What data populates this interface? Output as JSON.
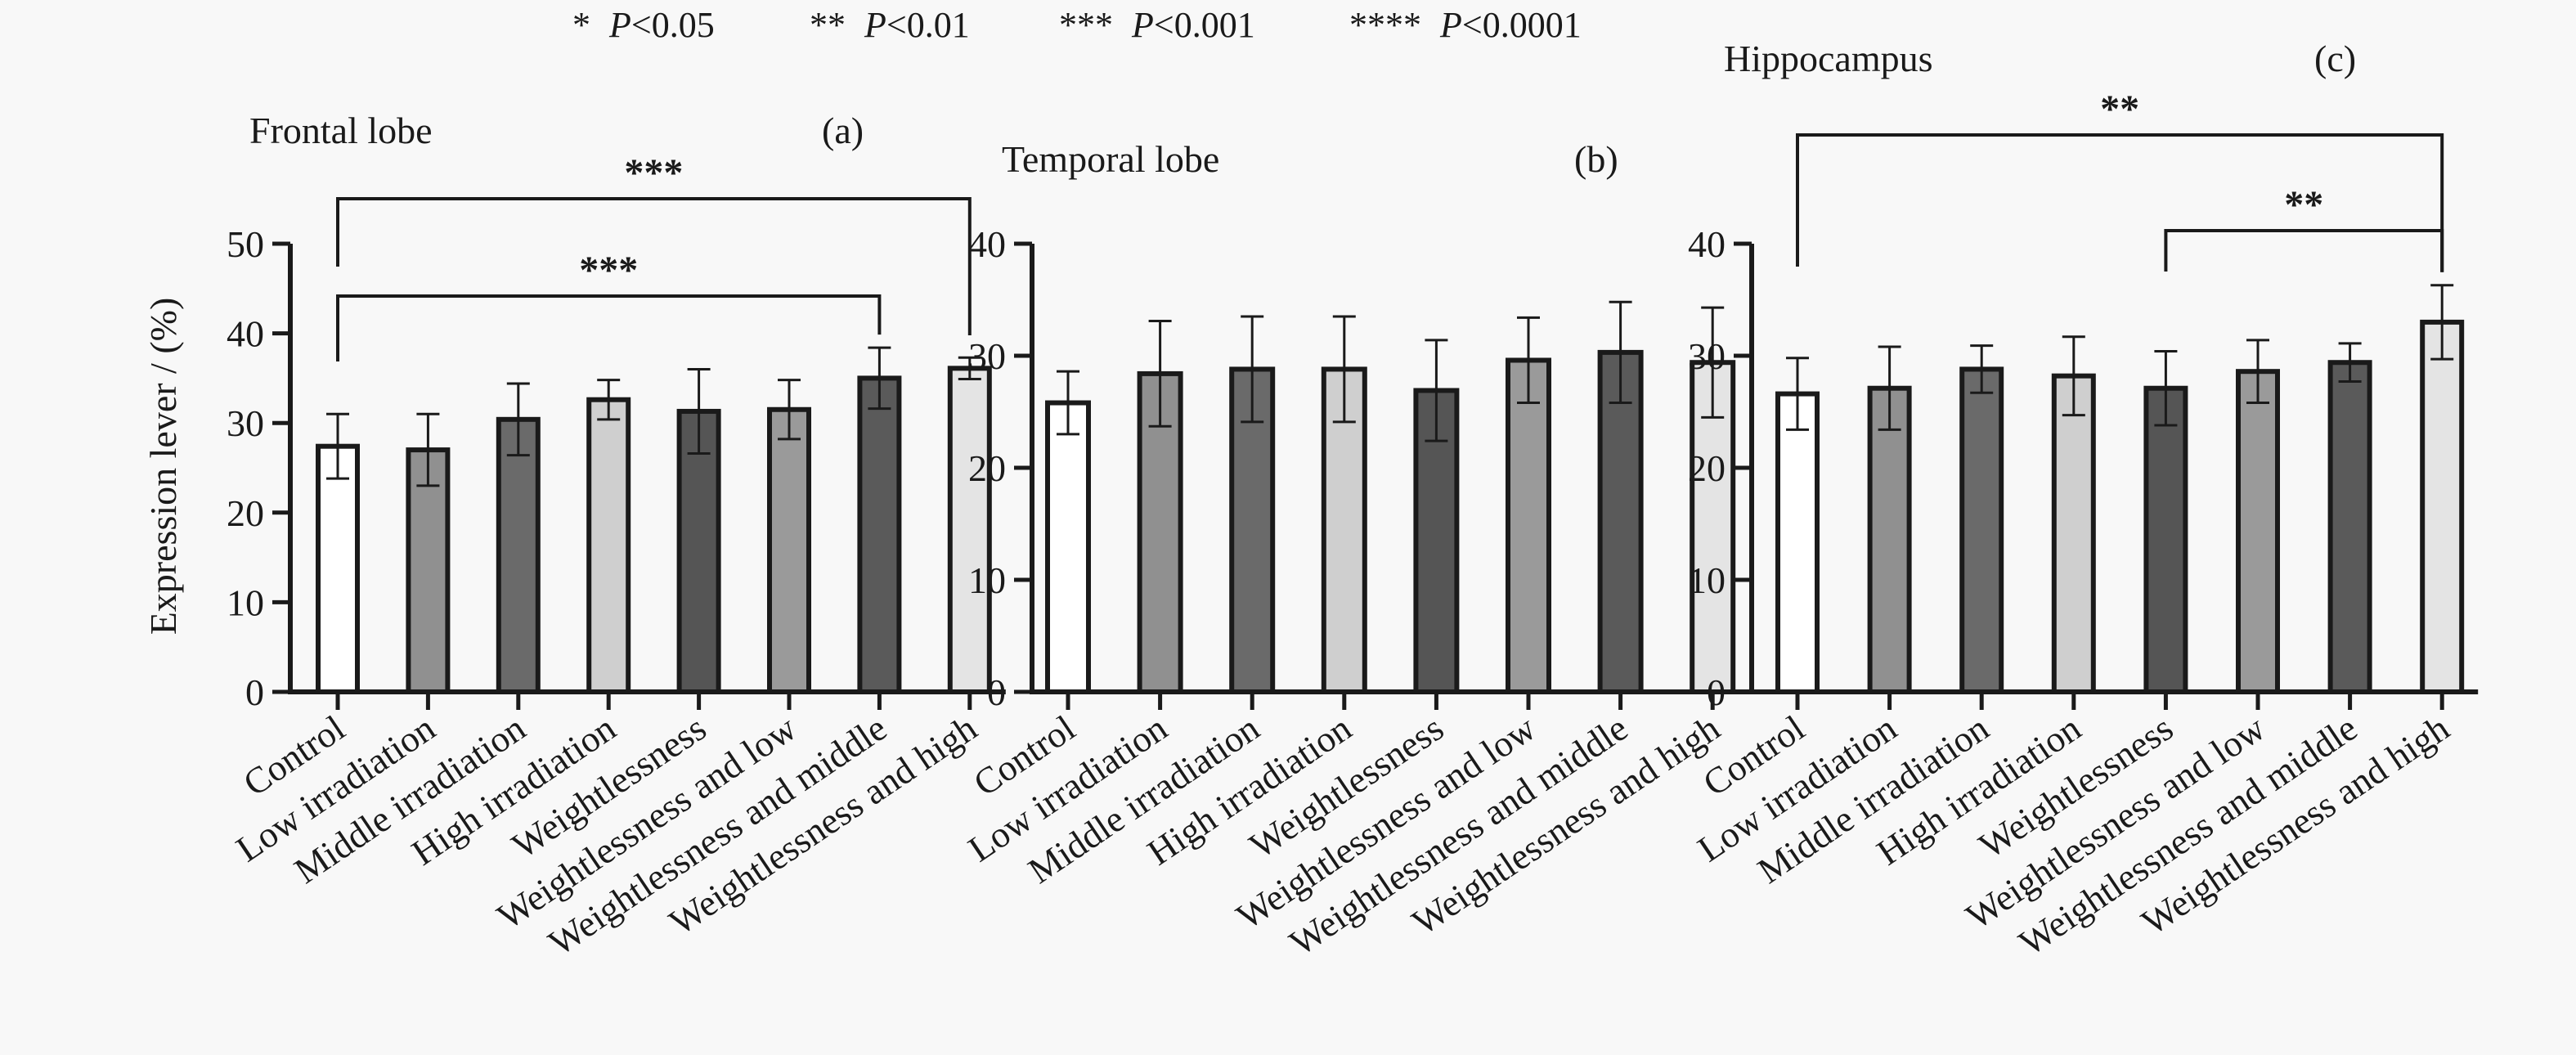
{
  "significance_legend": [
    {
      "stars": "*",
      "p_label": "P",
      "comparator": "<0.05"
    },
    {
      "stars": "**",
      "p_label": "P",
      "comparator": "<0.01"
    },
    {
      "stars": "***",
      "p_label": "P",
      "comparator": "<0.001"
    },
    {
      "stars": "****",
      "p_label": "P",
      "comparator": "<0.0001"
    }
  ],
  "y_axis_label": "Expression lever / (%)",
  "chart_data": [
    {
      "type": "bar",
      "title": "Frontal lobe",
      "panel_label": "(a)",
      "categories": [
        "Control",
        "Low irradiation",
        "Middle irradiation",
        "High irradiation",
        "Weightlessness",
        "Weightlessness and low",
        "Weightlessness and middle",
        "Weightlessness and high"
      ],
      "values": [
        27.4,
        27.0,
        30.4,
        32.6,
        31.3,
        31.5,
        35.0,
        36.1
      ],
      "error": [
        3.6,
        4.0,
        4.0,
        2.2,
        4.7,
        3.3,
        3.4,
        1.2
      ],
      "ylim": [
        0,
        50
      ],
      "yticks": [
        0,
        10,
        20,
        30,
        40,
        50
      ],
      "ylabel": "Expression lever / (%)",
      "bar_colors": [
        "#ffffff",
        "#909090",
        "#6a6a6a",
        "#cfcfcf",
        "#555555",
        "#9a9a9a",
        "#5a5a5a",
        "#e4e4e4"
      ],
      "significance": [
        {
          "from": 0,
          "to": 6,
          "label": "***"
        },
        {
          "from": 0,
          "to": 7,
          "label": "***"
        }
      ]
    },
    {
      "type": "bar",
      "title": "Temporal lobe",
      "panel_label": "(b)",
      "categories": [
        "Control",
        "Low irradiation",
        "Middle irradiation",
        "High irradiation",
        "Weightlessness",
        "Weightlessness and low",
        "Weightlessness and middle",
        "Weightlessness and high"
      ],
      "values": [
        25.8,
        28.4,
        28.8,
        28.8,
        26.9,
        29.6,
        30.3,
        29.4
      ],
      "error": [
        2.8,
        4.7,
        4.7,
        4.7,
        4.5,
        3.8,
        4.5,
        4.9
      ],
      "ylim": [
        0,
        40
      ],
      "yticks": [
        0,
        10,
        20,
        30,
        40
      ],
      "ylabel": "",
      "bar_colors": [
        "#ffffff",
        "#909090",
        "#6a6a6a",
        "#cfcfcf",
        "#555555",
        "#9a9a9a",
        "#5a5a5a",
        "#e4e4e4"
      ],
      "significance": []
    },
    {
      "type": "bar",
      "title": "Hippocampus",
      "panel_label": "(c)",
      "categories": [
        "Control",
        "Low irradiation",
        "Middle irradiation",
        "High irradiation",
        "Weightlessness",
        "Weightlessness and low",
        "Weightlessness and middle",
        "Weightlessness and high"
      ],
      "values": [
        26.6,
        27.1,
        28.8,
        28.2,
        27.1,
        28.6,
        29.4,
        33.0
      ],
      "error": [
        3.2,
        3.7,
        2.1,
        3.5,
        3.3,
        2.8,
        1.7,
        3.3
      ],
      "ylim": [
        0,
        40
      ],
      "yticks": [
        0,
        10,
        20,
        30,
        40
      ],
      "ylabel": "",
      "bar_colors": [
        "#ffffff",
        "#909090",
        "#6a6a6a",
        "#cfcfcf",
        "#555555",
        "#9a9a9a",
        "#5a5a5a",
        "#e4e4e4"
      ],
      "significance": [
        {
          "from": 0,
          "to": 7,
          "label": "**"
        },
        {
          "from": 4,
          "to": 7,
          "label": "**"
        }
      ]
    }
  ]
}
